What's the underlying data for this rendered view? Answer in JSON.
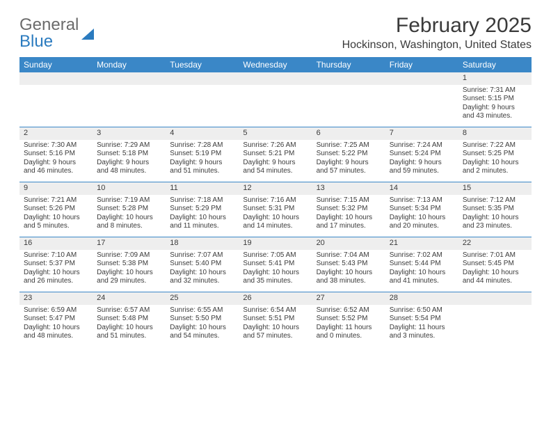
{
  "brand": {
    "word1": "General",
    "word2": "Blue"
  },
  "title": "February 2025",
  "location": "Hockinson, Washington, United States",
  "colors": {
    "header_bg": "#3a87c7",
    "header_text": "#ffffff",
    "daynum_bg": "#eeeeee",
    "border": "#3a87c7",
    "text": "#3a3a3a",
    "logo_gray": "#6b6b6b",
    "logo_blue": "#2b7bbf"
  },
  "typography": {
    "title_fontsize": 30,
    "location_fontsize": 16,
    "weekday_fontsize": 12,
    "body_fontsize": 10
  },
  "layout": {
    "columns": 7,
    "rows": 5,
    "first_weekday": "Sunday"
  },
  "weekdays": [
    "Sunday",
    "Monday",
    "Tuesday",
    "Wednesday",
    "Thursday",
    "Friday",
    "Saturday"
  ],
  "weeks": [
    [
      {
        "n": "",
        "sunrise": "",
        "sunset": "",
        "daylight": ""
      },
      {
        "n": "",
        "sunrise": "",
        "sunset": "",
        "daylight": ""
      },
      {
        "n": "",
        "sunrise": "",
        "sunset": "",
        "daylight": ""
      },
      {
        "n": "",
        "sunrise": "",
        "sunset": "",
        "daylight": ""
      },
      {
        "n": "",
        "sunrise": "",
        "sunset": "",
        "daylight": ""
      },
      {
        "n": "",
        "sunrise": "",
        "sunset": "",
        "daylight": ""
      },
      {
        "n": "1",
        "sunrise": "Sunrise: 7:31 AM",
        "sunset": "Sunset: 5:15 PM",
        "daylight": "Daylight: 9 hours and 43 minutes."
      }
    ],
    [
      {
        "n": "2",
        "sunrise": "Sunrise: 7:30 AM",
        "sunset": "Sunset: 5:16 PM",
        "daylight": "Daylight: 9 hours and 46 minutes."
      },
      {
        "n": "3",
        "sunrise": "Sunrise: 7:29 AM",
        "sunset": "Sunset: 5:18 PM",
        "daylight": "Daylight: 9 hours and 48 minutes."
      },
      {
        "n": "4",
        "sunrise": "Sunrise: 7:28 AM",
        "sunset": "Sunset: 5:19 PM",
        "daylight": "Daylight: 9 hours and 51 minutes."
      },
      {
        "n": "5",
        "sunrise": "Sunrise: 7:26 AM",
        "sunset": "Sunset: 5:21 PM",
        "daylight": "Daylight: 9 hours and 54 minutes."
      },
      {
        "n": "6",
        "sunrise": "Sunrise: 7:25 AM",
        "sunset": "Sunset: 5:22 PM",
        "daylight": "Daylight: 9 hours and 57 minutes."
      },
      {
        "n": "7",
        "sunrise": "Sunrise: 7:24 AM",
        "sunset": "Sunset: 5:24 PM",
        "daylight": "Daylight: 9 hours and 59 minutes."
      },
      {
        "n": "8",
        "sunrise": "Sunrise: 7:22 AM",
        "sunset": "Sunset: 5:25 PM",
        "daylight": "Daylight: 10 hours and 2 minutes."
      }
    ],
    [
      {
        "n": "9",
        "sunrise": "Sunrise: 7:21 AM",
        "sunset": "Sunset: 5:26 PM",
        "daylight": "Daylight: 10 hours and 5 minutes."
      },
      {
        "n": "10",
        "sunrise": "Sunrise: 7:19 AM",
        "sunset": "Sunset: 5:28 PM",
        "daylight": "Daylight: 10 hours and 8 minutes."
      },
      {
        "n": "11",
        "sunrise": "Sunrise: 7:18 AM",
        "sunset": "Sunset: 5:29 PM",
        "daylight": "Daylight: 10 hours and 11 minutes."
      },
      {
        "n": "12",
        "sunrise": "Sunrise: 7:16 AM",
        "sunset": "Sunset: 5:31 PM",
        "daylight": "Daylight: 10 hours and 14 minutes."
      },
      {
        "n": "13",
        "sunrise": "Sunrise: 7:15 AM",
        "sunset": "Sunset: 5:32 PM",
        "daylight": "Daylight: 10 hours and 17 minutes."
      },
      {
        "n": "14",
        "sunrise": "Sunrise: 7:13 AM",
        "sunset": "Sunset: 5:34 PM",
        "daylight": "Daylight: 10 hours and 20 minutes."
      },
      {
        "n": "15",
        "sunrise": "Sunrise: 7:12 AM",
        "sunset": "Sunset: 5:35 PM",
        "daylight": "Daylight: 10 hours and 23 minutes."
      }
    ],
    [
      {
        "n": "16",
        "sunrise": "Sunrise: 7:10 AM",
        "sunset": "Sunset: 5:37 PM",
        "daylight": "Daylight: 10 hours and 26 minutes."
      },
      {
        "n": "17",
        "sunrise": "Sunrise: 7:09 AM",
        "sunset": "Sunset: 5:38 PM",
        "daylight": "Daylight: 10 hours and 29 minutes."
      },
      {
        "n": "18",
        "sunrise": "Sunrise: 7:07 AM",
        "sunset": "Sunset: 5:40 PM",
        "daylight": "Daylight: 10 hours and 32 minutes."
      },
      {
        "n": "19",
        "sunrise": "Sunrise: 7:05 AM",
        "sunset": "Sunset: 5:41 PM",
        "daylight": "Daylight: 10 hours and 35 minutes."
      },
      {
        "n": "20",
        "sunrise": "Sunrise: 7:04 AM",
        "sunset": "Sunset: 5:43 PM",
        "daylight": "Daylight: 10 hours and 38 minutes."
      },
      {
        "n": "21",
        "sunrise": "Sunrise: 7:02 AM",
        "sunset": "Sunset: 5:44 PM",
        "daylight": "Daylight: 10 hours and 41 minutes."
      },
      {
        "n": "22",
        "sunrise": "Sunrise: 7:01 AM",
        "sunset": "Sunset: 5:45 PM",
        "daylight": "Daylight: 10 hours and 44 minutes."
      }
    ],
    [
      {
        "n": "23",
        "sunrise": "Sunrise: 6:59 AM",
        "sunset": "Sunset: 5:47 PM",
        "daylight": "Daylight: 10 hours and 48 minutes."
      },
      {
        "n": "24",
        "sunrise": "Sunrise: 6:57 AM",
        "sunset": "Sunset: 5:48 PM",
        "daylight": "Daylight: 10 hours and 51 minutes."
      },
      {
        "n": "25",
        "sunrise": "Sunrise: 6:55 AM",
        "sunset": "Sunset: 5:50 PM",
        "daylight": "Daylight: 10 hours and 54 minutes."
      },
      {
        "n": "26",
        "sunrise": "Sunrise: 6:54 AM",
        "sunset": "Sunset: 5:51 PM",
        "daylight": "Daylight: 10 hours and 57 minutes."
      },
      {
        "n": "27",
        "sunrise": "Sunrise: 6:52 AM",
        "sunset": "Sunset: 5:52 PM",
        "daylight": "Daylight: 11 hours and 0 minutes."
      },
      {
        "n": "28",
        "sunrise": "Sunrise: 6:50 AM",
        "sunset": "Sunset: 5:54 PM",
        "daylight": "Daylight: 11 hours and 3 minutes."
      },
      {
        "n": "",
        "sunrise": "",
        "sunset": "",
        "daylight": ""
      }
    ]
  ]
}
